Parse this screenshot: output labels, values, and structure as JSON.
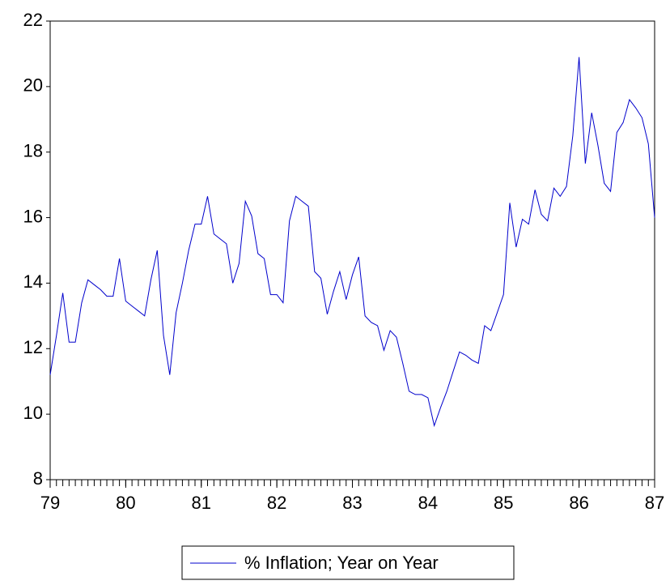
{
  "chart_data": {
    "type": "line",
    "x": [
      79,
      79.083,
      79.167,
      79.25,
      79.333,
      79.417,
      79.5,
      79.583,
      79.667,
      79.75,
      79.833,
      79.917,
      80,
      80.083,
      80.167,
      80.25,
      80.333,
      80.417,
      80.5,
      80.583,
      80.667,
      80.75,
      80.833,
      80.917,
      81,
      81.083,
      81.167,
      81.25,
      81.333,
      81.417,
      81.5,
      81.583,
      81.667,
      81.75,
      81.833,
      81.917,
      82,
      82.083,
      82.167,
      82.25,
      82.333,
      82.417,
      82.5,
      82.583,
      82.667,
      82.75,
      82.833,
      82.917,
      83,
      83.083,
      83.167,
      83.25,
      83.333,
      83.417,
      83.5,
      83.583,
      83.667,
      83.75,
      83.833,
      83.917,
      84,
      84.083,
      84.167,
      84.25,
      84.333,
      84.417,
      84.5,
      84.583,
      84.667,
      84.75,
      84.833,
      84.917,
      85,
      85.083,
      85.167,
      85.25,
      85.333,
      85.417,
      85.5,
      85.583,
      85.667,
      85.75,
      85.833,
      85.917,
      86,
      86.083,
      86.167,
      86.25,
      86.333,
      86.417,
      86.5,
      86.583,
      86.667,
      86.75,
      86.833,
      86.917,
      87
    ],
    "series": [
      {
        "name": "% Inflation; Year on Year",
        "color": "#0000cc",
        "values": [
          11.2,
          12.4,
          13.7,
          12.2,
          12.2,
          13.4,
          14.1,
          13.95,
          13.8,
          13.6,
          13.6,
          14.75,
          13.45,
          13.3,
          13.15,
          13.0,
          14.1,
          15.0,
          12.4,
          11.2,
          13.1,
          14.0,
          15.0,
          15.8,
          15.8,
          16.65,
          15.5,
          15.35,
          15.2,
          14.0,
          14.6,
          16.5,
          16.05,
          14.9,
          14.75,
          13.65,
          13.65,
          13.4,
          15.9,
          16.65,
          16.5,
          16.35,
          14.35,
          14.15,
          13.05,
          13.75,
          14.35,
          13.5,
          14.25,
          14.8,
          13.0,
          12.8,
          12.7,
          11.95,
          12.55,
          12.35,
          11.55,
          10.7,
          10.6,
          10.6,
          10.5,
          9.65,
          10.2,
          10.7,
          11.3,
          11.9,
          11.8,
          11.65,
          11.55,
          12.7,
          12.55,
          13.1,
          13.65,
          16.45,
          15.1,
          15.95,
          15.8,
          16.85,
          16.1,
          15.9,
          16.9,
          16.65,
          16.95,
          18.5,
          20.9,
          17.65,
          19.2,
          18.2,
          17.05,
          16.8,
          18.6,
          18.9,
          19.6,
          19.35,
          19.05,
          18.25,
          16.0
        ]
      }
    ],
    "xlim": [
      79,
      87
    ],
    "xticks": [
      79,
      80,
      81,
      82,
      83,
      84,
      85,
      86,
      87
    ],
    "ylim": [
      8,
      22
    ],
    "yticks": [
      8,
      10,
      12,
      14,
      16,
      18,
      20,
      22
    ]
  }
}
